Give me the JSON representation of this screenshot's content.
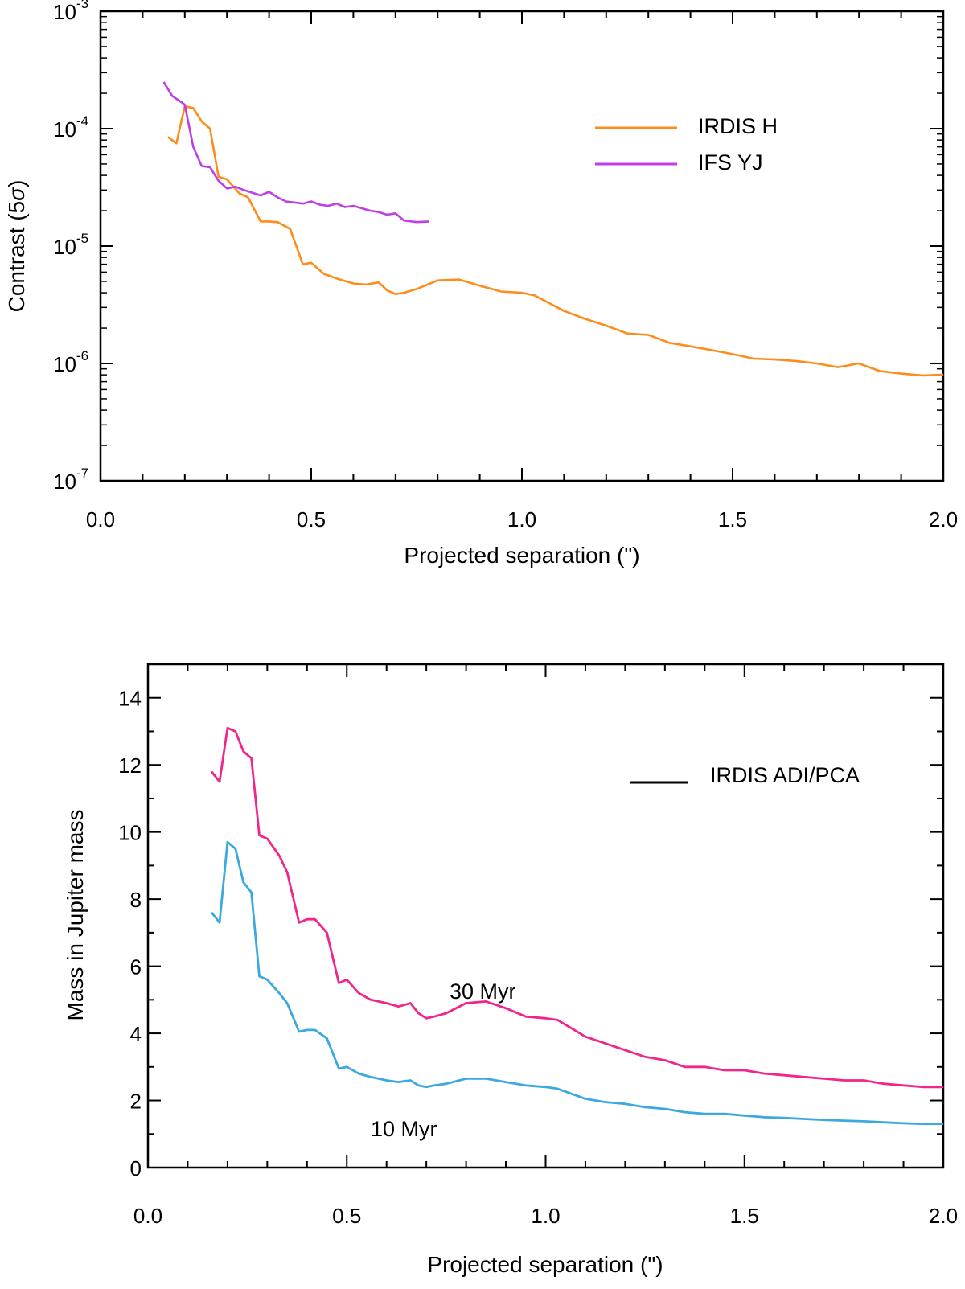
{
  "chart_data": [
    {
      "type": "line",
      "title": "",
      "xlabel": "Projected separation (\")",
      "ylabel_prefix": "Contrast (5",
      "ylabel_sigma": "σ",
      "ylabel_suffix": ")",
      "xlim": [
        0.0,
        2.0
      ],
      "ylim_log10": [
        -7,
        -3
      ],
      "yscale": "log",
      "x_ticks": [
        "0.0",
        "0.5",
        "1.0",
        "1.5",
        "2.0"
      ],
      "y_ticks": [
        {
          "base": "10",
          "exp": "-7"
        },
        {
          "base": "10",
          "exp": "-6"
        },
        {
          "base": "10",
          "exp": "-5"
        },
        {
          "base": "10",
          "exp": "-4"
        },
        {
          "base": "10",
          "exp": "-3"
        }
      ],
      "legend_position": "upper-right",
      "series": [
        {
          "name": "IRDIS H",
          "color": "#ff8c1a",
          "x": [
            0.16,
            0.18,
            0.2,
            0.22,
            0.24,
            0.26,
            0.28,
            0.3,
            0.33,
            0.35,
            0.38,
            0.4,
            0.42,
            0.45,
            0.48,
            0.5,
            0.53,
            0.56,
            0.6,
            0.63,
            0.66,
            0.68,
            0.7,
            0.72,
            0.75,
            0.8,
            0.85,
            0.9,
            0.95,
            1.0,
            1.03,
            1.1,
            1.15,
            1.2,
            1.25,
            1.3,
            1.35,
            1.4,
            1.45,
            1.5,
            1.55,
            1.6,
            1.65,
            1.7,
            1.75,
            1.8,
            1.85,
            1.9,
            1.95,
            2.0
          ],
          "values": [
            8.5e-05,
            7.5e-05,
            0.000155,
            0.00015,
            0.000115,
            0.0001,
            3.9e-05,
            3.7e-05,
            2.8e-05,
            2.6e-05,
            1.62e-05,
            1.62e-05,
            1.6e-05,
            1.4e-05,
            7e-06,
            7.2e-06,
            5.8e-06,
            5.3e-06,
            4.8e-06,
            4.7e-06,
            4.9e-06,
            4.2e-06,
            3.9e-06,
            4e-06,
            4.3e-06,
            5.1e-06,
            5.2e-06,
            4.6e-06,
            4.1e-06,
            4e-06,
            3.8e-06,
            2.8e-06,
            2.4e-06,
            2.1e-06,
            1.8e-06,
            1.75e-06,
            1.5e-06,
            1.4e-06,
            1.3e-06,
            1.2e-06,
            1.1e-06,
            1.08e-06,
            1.05e-06,
            1e-06,
            9.3e-07,
            1e-06,
            8.6e-07,
            8.2e-07,
            7.9e-07,
            8e-07
          ]
        },
        {
          "name": "IFS YJ",
          "color": "#c03ee8",
          "x": [
            0.15,
            0.17,
            0.19,
            0.2,
            0.22,
            0.24,
            0.26,
            0.28,
            0.3,
            0.32,
            0.34,
            0.36,
            0.38,
            0.4,
            0.42,
            0.44,
            0.46,
            0.48,
            0.5,
            0.52,
            0.54,
            0.56,
            0.58,
            0.6,
            0.62,
            0.64,
            0.66,
            0.68,
            0.7,
            0.72,
            0.75,
            0.78
          ],
          "values": [
            0.00025,
            0.00019,
            0.00017,
            0.00016,
            7e-05,
            4.8e-05,
            4.7e-05,
            3.6e-05,
            3.1e-05,
            3.2e-05,
            3e-05,
            2.85e-05,
            2.7e-05,
            2.9e-05,
            2.6e-05,
            2.4e-05,
            2.35e-05,
            2.3e-05,
            2.4e-05,
            2.25e-05,
            2.2e-05,
            2.3e-05,
            2.15e-05,
            2.2e-05,
            2.1e-05,
            2e-05,
            1.95e-05,
            1.85e-05,
            1.9e-05,
            1.65e-05,
            1.6e-05,
            1.62e-05
          ]
        }
      ]
    },
    {
      "type": "line",
      "title": "",
      "xlabel": "Projected separation (\")",
      "ylabel": "Mass in Jupiter mass",
      "xlim": [
        0.0,
        2.0
      ],
      "ylim": [
        0,
        15
      ],
      "x_ticks": [
        "0.0",
        "0.5",
        "1.0",
        "1.5",
        "2.0"
      ],
      "y_ticks": [
        "0",
        "2",
        "4",
        "6",
        "8",
        "10",
        "12",
        "14"
      ],
      "legend_position": "upper-right",
      "legend_entry": "IRDIS ADI/PCA",
      "legend_color": "#000000",
      "series": [
        {
          "name": "30 Myr",
          "color": "#f0268a",
          "x": [
            0.16,
            0.18,
            0.2,
            0.22,
            0.24,
            0.26,
            0.28,
            0.3,
            0.33,
            0.35,
            0.38,
            0.4,
            0.42,
            0.45,
            0.48,
            0.5,
            0.53,
            0.56,
            0.6,
            0.63,
            0.66,
            0.68,
            0.7,
            0.72,
            0.75,
            0.8,
            0.85,
            0.9,
            0.95,
            1.0,
            1.03,
            1.1,
            1.15,
            1.2,
            1.25,
            1.3,
            1.35,
            1.4,
            1.45,
            1.5,
            1.55,
            1.6,
            1.65,
            1.7,
            1.75,
            1.8,
            1.85,
            1.9,
            1.95,
            2.0
          ],
          "values": [
            11.8,
            11.5,
            13.1,
            13.0,
            12.4,
            12.2,
            9.9,
            9.8,
            9.3,
            8.8,
            7.3,
            7.4,
            7.4,
            7.0,
            5.5,
            5.6,
            5.2,
            5.0,
            4.9,
            4.8,
            4.9,
            4.6,
            4.45,
            4.5,
            4.6,
            4.9,
            4.95,
            4.75,
            4.5,
            4.45,
            4.4,
            3.9,
            3.7,
            3.5,
            3.3,
            3.2,
            3.0,
            3.0,
            2.9,
            2.9,
            2.8,
            2.75,
            2.7,
            2.65,
            2.6,
            2.6,
            2.5,
            2.45,
            2.4,
            2.4
          ]
        },
        {
          "name": "10 Myr",
          "color": "#3ba9e0",
          "x": [
            0.16,
            0.18,
            0.2,
            0.22,
            0.24,
            0.26,
            0.28,
            0.3,
            0.33,
            0.35,
            0.38,
            0.4,
            0.42,
            0.45,
            0.48,
            0.5,
            0.53,
            0.56,
            0.6,
            0.63,
            0.66,
            0.68,
            0.7,
            0.72,
            0.75,
            0.8,
            0.85,
            0.9,
            0.95,
            1.0,
            1.03,
            1.1,
            1.15,
            1.2,
            1.25,
            1.3,
            1.35,
            1.4,
            1.45,
            1.5,
            1.55,
            1.6,
            1.65,
            1.7,
            1.75,
            1.8,
            1.85,
            1.9,
            1.95,
            2.0
          ],
          "values": [
            7.6,
            7.3,
            9.7,
            9.5,
            8.5,
            8.2,
            5.7,
            5.6,
            5.2,
            4.9,
            4.05,
            4.1,
            4.1,
            3.85,
            2.95,
            3.0,
            2.8,
            2.7,
            2.6,
            2.55,
            2.6,
            2.45,
            2.4,
            2.45,
            2.5,
            2.65,
            2.65,
            2.55,
            2.45,
            2.4,
            2.35,
            2.05,
            1.95,
            1.9,
            1.8,
            1.75,
            1.65,
            1.6,
            1.6,
            1.55,
            1.5,
            1.48,
            1.45,
            1.42,
            1.4,
            1.38,
            1.35,
            1.32,
            1.3,
            1.3
          ]
        }
      ]
    }
  ]
}
